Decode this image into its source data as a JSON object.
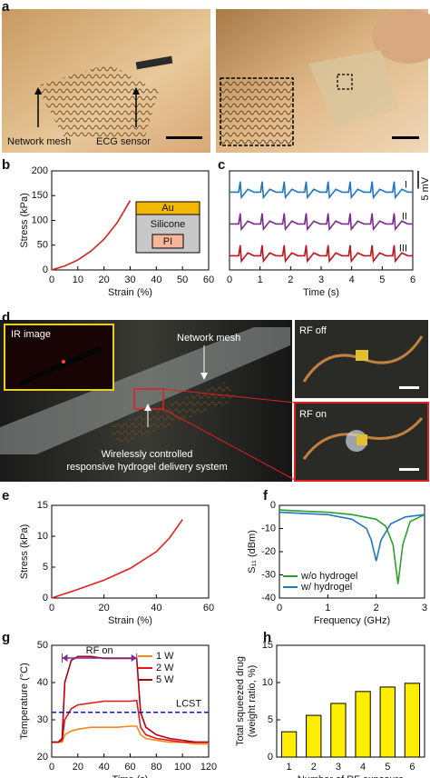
{
  "panel_labels": [
    "a",
    "b",
    "c",
    "d",
    "e",
    "f",
    "g",
    "h"
  ],
  "photo_a": {
    "labels": [
      "Network mesh",
      "ECG sensor"
    ]
  },
  "photo_d": {
    "labels": [
      "IR image",
      "Network mesh",
      "Wirelessly controlled",
      "responsive hydrogel delivery system",
      "RF off",
      "RF on"
    ]
  },
  "chart_data": [
    {
      "type": "line",
      "xlabel": "Strain (%)",
      "ylabel": "Stress (kPa)",
      "x": [
        0,
        5,
        10,
        15,
        20,
        25,
        30
      ],
      "series": [
        {
          "color": "#d62020",
          "values": [
            0,
            8,
            20,
            38,
            62,
            95,
            140
          ]
        }
      ],
      "xlim": [
        0,
        60
      ],
      "xticks": [
        0,
        10,
        20,
        30,
        40,
        50,
        60
      ],
      "ylim": [
        0,
        200
      ],
      "yticks": [
        0,
        50,
        100,
        150,
        200
      ],
      "inset_labels": [
        "Au",
        "Silicone",
        "PI"
      ]
    },
    {
      "type": "line",
      "xlabel": "Time (s)",
      "x": [
        0,
        0.3,
        0.35,
        0.39,
        0.6,
        0.8,
        1.02,
        1.07,
        1.11,
        1.32,
        1.52,
        1.74,
        1.79,
        1.83,
        2.04,
        2.24,
        2.46,
        2.51,
        2.55,
        2.76,
        2.96,
        3.18,
        3.23,
        3.27,
        3.48,
        3.68,
        3.9,
        3.95,
        3.99,
        4.2,
        4.4,
        4.62,
        4.67,
        4.71,
        4.92,
        5.12,
        5.34,
        5.39,
        5.43,
        5.64,
        5.84,
        6
      ],
      "series": [
        {
          "name": "I",
          "color": "#1f77c4",
          "values": [
            20,
            20,
            23,
            18.5,
            20.8,
            20,
            20,
            23,
            18.5,
            20.8,
            20,
            20,
            23,
            18.5,
            20.8,
            20,
            20,
            23,
            18.5,
            20.8,
            20,
            20,
            23,
            18.5,
            20.8,
            20,
            20,
            23,
            18.5,
            20.8,
            20,
            20,
            23,
            18.5,
            20.8,
            20,
            20,
            23,
            18.5,
            20.8,
            20,
            20
          ]
        },
        {
          "name": "II",
          "color": "#7b2d8e",
          "values": [
            11,
            11,
            14,
            9.5,
            11.8,
            11,
            11,
            14,
            9.5,
            11.8,
            11,
            11,
            14,
            9.5,
            11.8,
            11,
            11,
            14,
            9.5,
            11.8,
            11,
            11,
            14,
            9.5,
            11.8,
            11,
            11,
            14,
            9.5,
            11.8,
            11,
            11,
            14,
            9.5,
            11.8,
            11,
            11,
            14,
            9.5,
            11.8,
            11,
            11
          ]
        },
        {
          "name": "III",
          "color": "#c0141c",
          "values": [
            2,
            2,
            5,
            0.5,
            2.8,
            2,
            2,
            5,
            0.5,
            2.8,
            2,
            2,
            5,
            0.5,
            2.8,
            2,
            2,
            5,
            0.5,
            2.8,
            2,
            2,
            5,
            0.5,
            2.8,
            2,
            2,
            5,
            0.5,
            2.8,
            2,
            2,
            5,
            0.5,
            2.8,
            2,
            2,
            5,
            0.5,
            2.8,
            2,
            2
          ]
        }
      ],
      "xlim": [
        0,
        6
      ],
      "xticks": [
        0,
        1,
        2,
        3,
        4,
        5,
        6
      ],
      "ylim": [
        -2,
        26
      ],
      "scale_bar": "5 mV"
    },
    {
      "type": "line",
      "xlabel": "Strain (%)",
      "ylabel": "Stress (kPa)",
      "x": [
        0,
        10,
        20,
        30,
        40,
        45,
        50
      ],
      "series": [
        {
          "color": "#e02020",
          "values": [
            0,
            1.4,
            2.9,
            4.8,
            7.5,
            9.7,
            12.7
          ]
        }
      ],
      "xlim": [
        0,
        60
      ],
      "xticks": [
        0,
        20,
        40,
        60
      ],
      "ylim": [
        0,
        15
      ],
      "yticks": [
        0,
        5,
        10,
        15
      ]
    },
    {
      "type": "xyline",
      "xlabel": "Frequency (GHz)",
      "ylabel": "S₁₁ (dBm)",
      "series": [
        {
          "name": "w/o hydrogel",
          "color": "#2ca02c",
          "x": [
            0,
            0.5,
            1,
            1.5,
            2,
            2.2,
            2.35,
            2.45,
            2.55,
            2.7,
            3
          ],
          "values": [
            -2,
            -2.5,
            -3,
            -4,
            -6,
            -9,
            -17,
            -34,
            -17,
            -7,
            -4
          ]
        },
        {
          "name": "w/ hydrogel",
          "color": "#1f77c4",
          "x": [
            0,
            0.5,
            1,
            1.5,
            1.8,
            1.9,
            2.0,
            2.1,
            2.3,
            2.6,
            3
          ],
          "values": [
            -3,
            -3.5,
            -4,
            -6,
            -10,
            -15,
            -24,
            -15,
            -8,
            -5,
            -4
          ]
        }
      ],
      "xlim": [
        0,
        3
      ],
      "xticks": [
        0,
        1,
        2,
        3
      ],
      "ylim": [
        -40,
        0
      ],
      "yticks": [
        0,
        -10,
        -20,
        -30,
        -40
      ]
    },
    {
      "type": "line",
      "xlabel": "Time (s)",
      "ylabel": "Temperature (°C)",
      "x": [
        0,
        5,
        8,
        10,
        15,
        20,
        30,
        40,
        50,
        60,
        65,
        68,
        72,
        80,
        90,
        100,
        110,
        120
      ],
      "series": [
        {
          "name": "1 W",
          "color": "#f08a1c",
          "values": [
            24,
            24,
            24,
            26,
            27,
            27.5,
            28,
            28,
            28,
            28.3,
            28.3,
            26,
            25,
            24.5,
            24,
            24,
            23.5,
            23.5
          ]
        },
        {
          "name": "2 W",
          "color": "#e01818",
          "values": [
            24,
            24,
            24.5,
            30,
            33,
            34,
            34.5,
            35,
            35,
            35,
            35.2,
            28,
            26,
            25,
            24.5,
            24,
            24,
            24
          ]
        },
        {
          "name": "5 W",
          "color": "#b00010",
          "values": [
            24,
            24,
            25,
            40,
            46,
            47,
            47,
            46.5,
            46.5,
            46.5,
            46.5,
            32,
            28,
            26,
            25,
            24.5,
            24,
            24
          ]
        }
      ],
      "xlim": [
        0,
        120
      ],
      "xticks": [
        0,
        20,
        40,
        60,
        80,
        100,
        120
      ],
      "ylim": [
        20,
        50
      ],
      "yticks": [
        20,
        30,
        40,
        50
      ],
      "lcst": {
        "label": "LCST",
        "value": 32
      },
      "rf_on": {
        "label": "RF on",
        "range": [
          8,
          65
        ]
      }
    },
    {
      "type": "bar",
      "xlabel": "Number of RF exposure",
      "ylabel": [
        "Total squeezed drug",
        "(weight ratio, %)"
      ],
      "categories": [
        "1",
        "2",
        "3",
        "4",
        "5",
        "6"
      ],
      "values": [
        3.4,
        5.6,
        7.2,
        8.8,
        9.4,
        9.9
      ],
      "color": "#ffee00",
      "ylim": [
        0,
        15
      ],
      "yticks": [
        0,
        5,
        10,
        15
      ]
    }
  ]
}
